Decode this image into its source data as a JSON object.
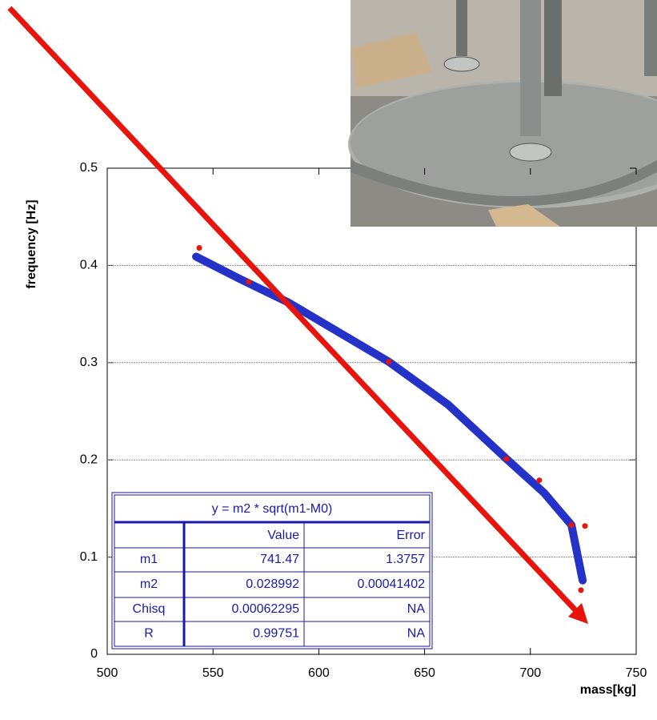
{
  "chart_data": {
    "type": "scatter",
    "xlabel": "mass[kg]",
    "ylabel": "frequency [Hz]",
    "xlim": [
      500,
      750
    ],
    "xticks": [
      500,
      550,
      600,
      650,
      700,
      750
    ],
    "ylim": [
      0,
      0.5
    ],
    "yticks": [
      0,
      0.1,
      0.2,
      0.3,
      0.4,
      0.5
    ],
    "grid": true,
    "series": [
      {
        "mode": "markers",
        "color": "#e8140c",
        "x": [
          543.5,
          566.9,
          633.1,
          688.7,
          704.2,
          719.4,
          725.8,
          723.9
        ],
        "values": [
          0.418,
          0.383,
          0.301,
          0.201,
          0.179,
          0.133,
          0.132,
          0.066
        ]
      },
      {
        "mode": "line",
        "color": "#2432c8",
        "x": [
          542,
          562.8,
          585.5,
          633,
          661,
          688.7,
          706.5,
          719.4,
          724.7
        ],
        "values": [
          0.409,
          0.386,
          0.362,
          0.301,
          0.257,
          0.201,
          0.166,
          0.133,
          0.076
        ]
      }
    ],
    "fit_table": {
      "title": "y = m2 * sqrt(m1-M0)",
      "header": [
        "Value",
        "Error"
      ],
      "rows": [
        [
          "m1",
          "741.47",
          "1.3757"
        ],
        [
          "m2",
          "0.028992",
          "0.00041402"
        ],
        [
          "Chisq",
          "0.00062295",
          "NA"
        ],
        [
          "R",
          "0.99751",
          "NA"
        ]
      ]
    }
  }
}
